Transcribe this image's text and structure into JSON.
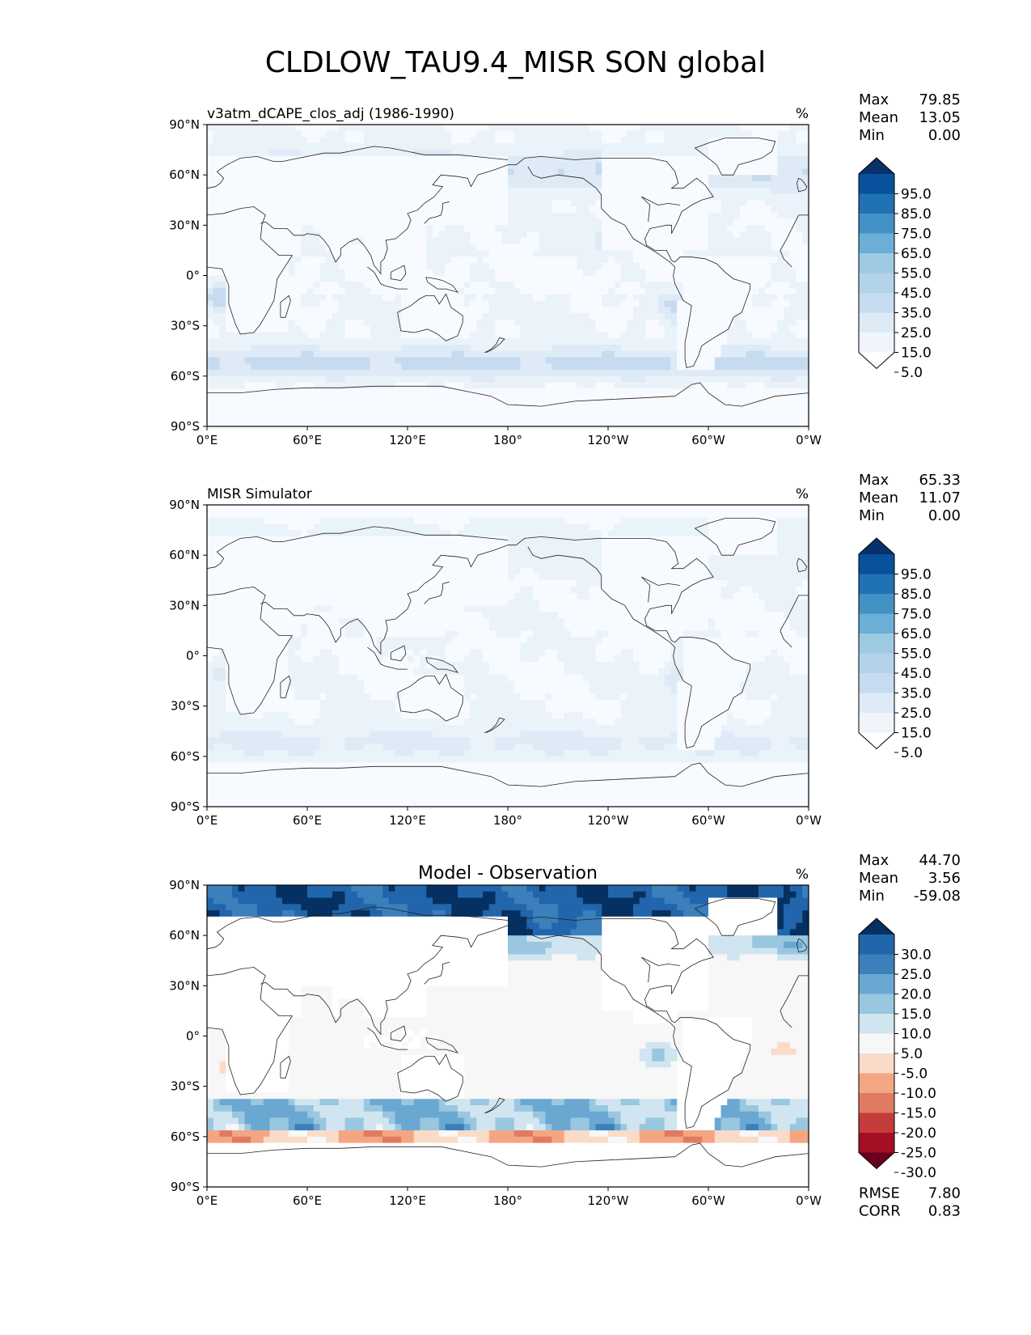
{
  "title": "CLDLOW_TAU9.4_MISR SON global",
  "chart_data": [
    {
      "type": "heatmap",
      "title_left": "v3atm_dCAPE_clos_adj (1986-1990)",
      "title_center": "",
      "units": "%",
      "x_ticks": [
        "0°E",
        "60°E",
        "120°E",
        "180°",
        "120°W",
        "60°W",
        "0°W"
      ],
      "y_ticks": [
        "90°N",
        "60°N",
        "30°N",
        "0°",
        "30°S",
        "60°S",
        "90°S"
      ],
      "stats": [
        {
          "label": "Max",
          "value": "79.85"
        },
        {
          "label": "Mean",
          "value": "13.05"
        },
        {
          "label": "Min",
          "value": "0.00"
        }
      ],
      "colorbar": {
        "labels": [
          "95.0",
          "85.0",
          "75.0",
          "65.0",
          "55.0",
          "45.0",
          "35.0",
          "25.0",
          "15.0",
          "5.0"
        ],
        "colors": [
          "#08306b",
          "#08519c",
          "#2171b5",
          "#4292c6",
          "#6baed6",
          "#9ecae1",
          "#b3d3ea",
          "#c6dbef",
          "#deebf7",
          "#eff5fb",
          "#ffffff"
        ]
      },
      "colorscale": [
        "#f7fbff",
        "#eaf2fa",
        "#deebf7",
        "#c6dbef",
        "#9ecae1",
        "#6baed6",
        "#4292c6",
        "#2171b5",
        "#08519c",
        "#08306b"
      ],
      "levels": [
        0,
        5,
        15,
        25,
        35,
        45,
        55,
        65,
        75,
        85,
        95
      ],
      "field": "model",
      "footer": []
    },
    {
      "type": "heatmap",
      "title_left": "MISR Simulator",
      "title_center": "",
      "units": "%",
      "x_ticks": [
        "0°E",
        "60°E",
        "120°E",
        "180°",
        "120°W",
        "60°W",
        "0°W"
      ],
      "y_ticks": [
        "90°N",
        "60°N",
        "30°N",
        "0°",
        "30°S",
        "60°S",
        "90°S"
      ],
      "stats": [
        {
          "label": "Max",
          "value": "65.33"
        },
        {
          "label": "Mean",
          "value": "11.07"
        },
        {
          "label": "Min",
          "value": "0.00"
        }
      ],
      "colorbar": {
        "labels": [
          "95.0",
          "85.0",
          "75.0",
          "65.0",
          "55.0",
          "45.0",
          "35.0",
          "25.0",
          "15.0",
          "5.0"
        ],
        "colors": [
          "#08306b",
          "#08519c",
          "#2171b5",
          "#4292c6",
          "#6baed6",
          "#9ecae1",
          "#b3d3ea",
          "#c6dbef",
          "#deebf7",
          "#eff5fb",
          "#ffffff"
        ]
      },
      "colorscale": [
        "#f7fbff",
        "#eaf2fa",
        "#deebf7",
        "#c6dbef",
        "#9ecae1",
        "#6baed6",
        "#4292c6",
        "#2171b5",
        "#08519c",
        "#08306b"
      ],
      "levels": [
        0,
        5,
        15,
        25,
        35,
        45,
        55,
        65,
        75,
        85,
        95
      ],
      "field": "obs",
      "footer": []
    },
    {
      "type": "heatmap",
      "title_left": "",
      "title_center": "Model - Observation",
      "units": "%",
      "x_ticks": [
        "0°E",
        "60°E",
        "120°E",
        "180°",
        "120°W",
        "60°W",
        "0°W"
      ],
      "y_ticks": [
        "90°N",
        "60°N",
        "30°N",
        "0°",
        "30°S",
        "60°S",
        "90°S"
      ],
      "stats": [
        {
          "label": "Max",
          "value": "44.70"
        },
        {
          "label": "Mean",
          "value": "3.56"
        },
        {
          "label": "Min",
          "value": "-59.08"
        }
      ],
      "colorbar": {
        "labels": [
          "30.0",
          "25.0",
          "20.0",
          "15.0",
          "10.0",
          "5.0",
          "-5.0",
          "-10.0",
          "-15.0",
          "-20.0",
          "-25.0",
          "-30.0"
        ],
        "colors": [
          "#053061",
          "#2166ac",
          "#3b7fbb",
          "#6aa8d2",
          "#99c7e0",
          "#d1e5f0",
          "#f7f7f7",
          "#fadbc8",
          "#f4a582",
          "#e07b62",
          "#c43c3c",
          "#a50f26",
          "#67001f"
        ]
      },
      "colorscale": [
        "#67001f",
        "#a50f26",
        "#c43c3c",
        "#e07b62",
        "#f4a582",
        "#fadbc8",
        "#f7f7f7",
        "#d1e5f0",
        "#99c7e0",
        "#6aa8d2",
        "#3b7fbb",
        "#2166ac",
        "#053061"
      ],
      "levels": [
        -35,
        -30,
        -25,
        -20,
        -15,
        -10,
        -5,
        5,
        10,
        15,
        20,
        25,
        30,
        35
      ],
      "field": "diff",
      "footer": [
        {
          "label": "RMSE",
          "value": "7.80"
        },
        {
          "label": "CORR",
          "value": "0.83"
        }
      ]
    }
  ]
}
